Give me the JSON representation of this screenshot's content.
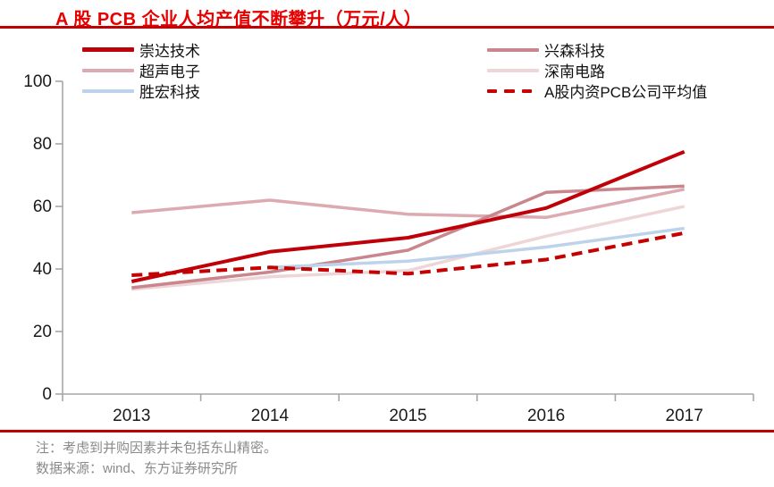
{
  "title": "A 股 PCB 企业人均产值不断攀升（万元/人）",
  "notes": {
    "note1": "注：考虑到并购因素并未包括东山精密。",
    "note2": "数据来源：wind、东方证券研究所"
  },
  "colors": {
    "title_red": "#e60000",
    "rule_red": "#c00000",
    "axis_gray": "#a6a6a6",
    "note_gray": "#8a8a8a"
  },
  "chart_data": {
    "type": "line",
    "title": "A 股 PCB 企业人均产值不断攀升（万元/人）",
    "xlabel": "",
    "ylabel": "",
    "categories": [
      "2013",
      "2014",
      "2015",
      "2016",
      "2017"
    ],
    "yticks": [
      0,
      20,
      40,
      60,
      80,
      100
    ],
    "ylim": [
      0,
      100
    ],
    "grid": false,
    "legend_position": "top-two-columns",
    "series": [
      {
        "name": "崇达技术",
        "color": "#bf0008",
        "width": 4,
        "dashed": false,
        "z": 6,
        "legend_column": "left",
        "values": [
          36,
          45.5,
          50,
          59.5,
          77.5
        ]
      },
      {
        "name": "超声电子",
        "color": "#dcaab0",
        "width": 3.5,
        "dashed": false,
        "z": 2,
        "legend_column": "left",
        "values": [
          58,
          62,
          57.5,
          56.5,
          65.5
        ]
      },
      {
        "name": "胜宏科技",
        "color": "#bdd3ea",
        "width": 3.5,
        "dashed": false,
        "z": 4,
        "legend_column": "left",
        "values": [
          null,
          40.5,
          42.5,
          47,
          53
        ]
      },
      {
        "name": "兴森科技",
        "color": "#c9878d",
        "width": 3.5,
        "dashed": false,
        "z": 3,
        "legend_column": "right",
        "values": [
          34,
          39,
          46,
          64.5,
          66.5
        ]
      },
      {
        "name": "深南电路",
        "color": "#eed6d8",
        "width": 3.5,
        "dashed": false,
        "z": 1,
        "legend_column": "right",
        "values": [
          33.5,
          37.5,
          39.5,
          50.5,
          60
        ]
      },
      {
        "name": "A股内资PCB公司平均值",
        "color": "#c40000",
        "width": 4,
        "dashed": true,
        "z": 5,
        "legend_column": "right",
        "values": [
          38,
          40.5,
          38.5,
          43,
          51.5
        ]
      }
    ]
  }
}
